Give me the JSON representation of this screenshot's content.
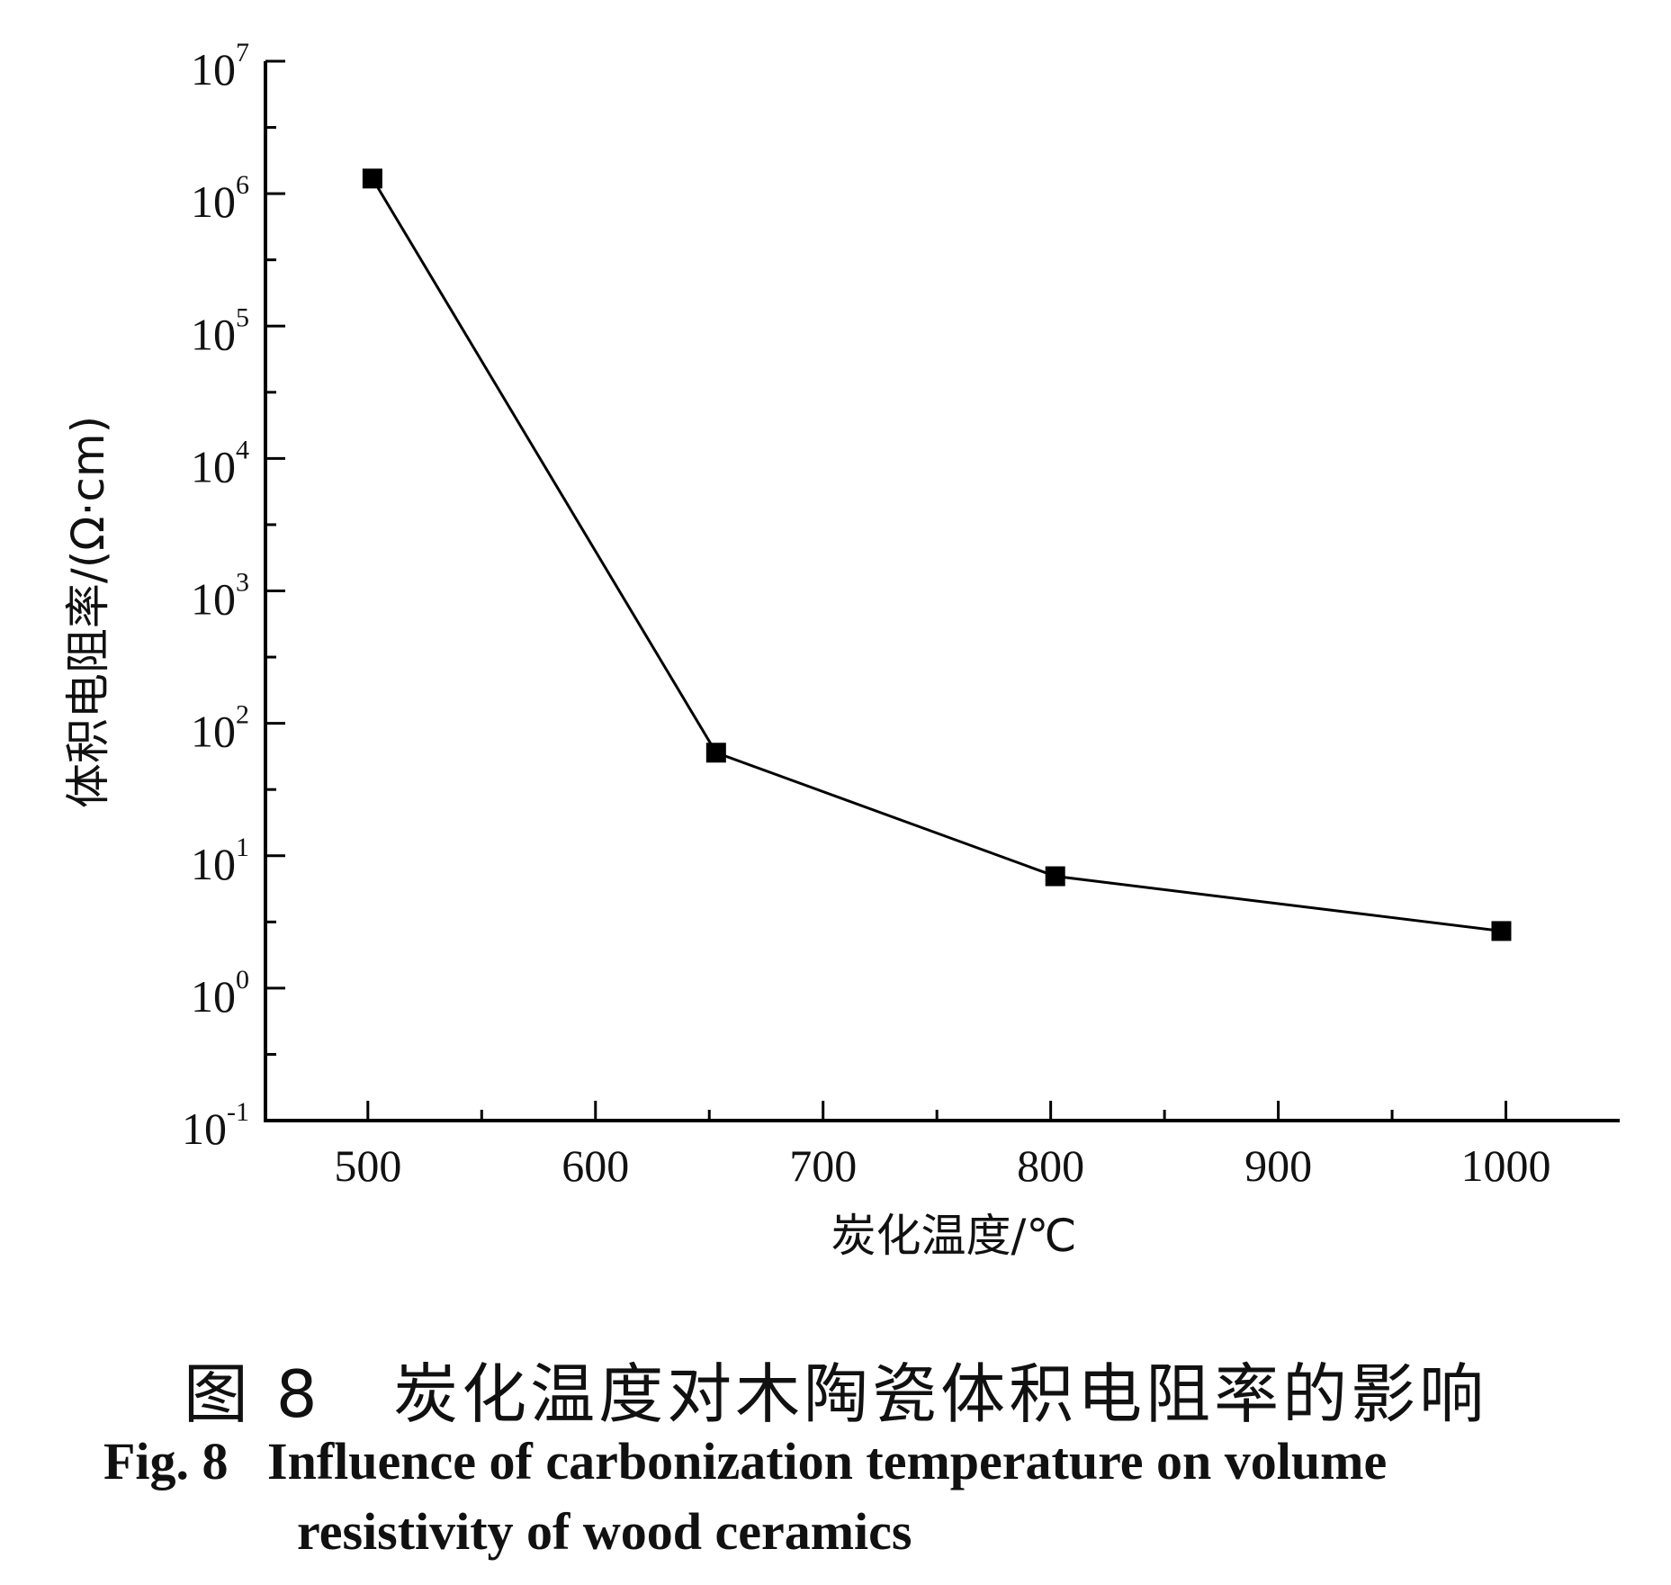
{
  "chart_data": {
    "type": "line",
    "xlabel": "炭化温度/℃",
    "ylabel": "体积电阻率/(Ω·cm)",
    "x_ticks": [
      500,
      600,
      700,
      800,
      900,
      1000
    ],
    "y_scale": "log",
    "y_tick_exponents": [
      -1,
      0,
      1,
      2,
      3,
      4,
      5,
      6,
      7
    ],
    "xlim": [
      455,
      1050
    ],
    "ylim": [
      0.1,
      10000000
    ],
    "series": [
      {
        "marker": "square",
        "color": "#000000",
        "x": [
          502,
          653,
          802,
          998
        ],
        "y": [
          1300000,
          60,
          7,
          2.7
        ]
      }
    ]
  },
  "caption": {
    "cn": "图 8   炭化温度对木陶瓷体积电阻率的影响",
    "en_line1": "Fig. 8   Influence of carbonization temperature on volume",
    "en_line2": "resistivity of wood ceramics"
  }
}
